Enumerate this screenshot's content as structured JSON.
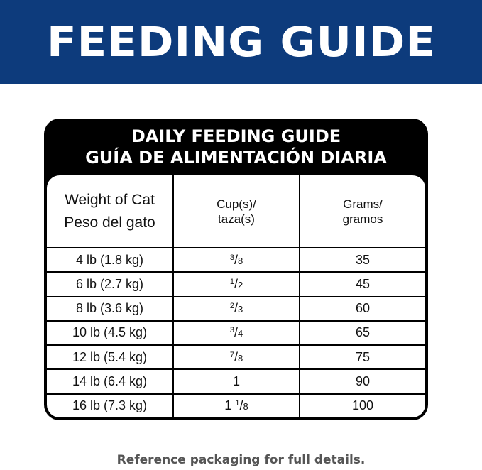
{
  "banner": {
    "title": "FEEDING GUIDE"
  },
  "guide": {
    "title_en": "DAILY FEEDING GUIDE",
    "title_es": "GUÍA DE ALIMENTACIÓN DIARIA",
    "headers": {
      "weight_en": "Weight of Cat",
      "weight_es": "Peso del gato",
      "cups_en": "Cup(s)/",
      "cups_es": "taza(s)",
      "grams_en": "Grams/",
      "grams_es": "gramos"
    },
    "rows": [
      {
        "weight": "4 lb (1.8 kg)",
        "cups_whole": "",
        "cups_num": "3",
        "cups_den": "8",
        "grams": "35"
      },
      {
        "weight": "6 lb (2.7 kg)",
        "cups_whole": "",
        "cups_num": "1",
        "cups_den": "2",
        "grams": "45"
      },
      {
        "weight": "8 lb (3.6 kg)",
        "cups_whole": "",
        "cups_num": "2",
        "cups_den": "3",
        "grams": "60"
      },
      {
        "weight": "10 lb (4.5 kg)",
        "cups_whole": "",
        "cups_num": "3",
        "cups_den": "4",
        "grams": "65"
      },
      {
        "weight": "12 lb (5.4 kg)",
        "cups_whole": "",
        "cups_num": "7",
        "cups_den": "8",
        "grams": "75"
      },
      {
        "weight": "14 lb (6.4 kg)",
        "cups_whole": "1",
        "cups_num": "",
        "cups_den": "",
        "grams": "90"
      },
      {
        "weight": "16 lb (7.3 kg)",
        "cups_whole": "1 ",
        "cups_num": "1",
        "cups_den": "8",
        "grams": "100"
      }
    ]
  },
  "footer": {
    "note": "Reference packaging for full details."
  },
  "colors": {
    "banner": "#0d3b7c",
    "table_frame": "#000000",
    "footer_text": "#555555"
  }
}
